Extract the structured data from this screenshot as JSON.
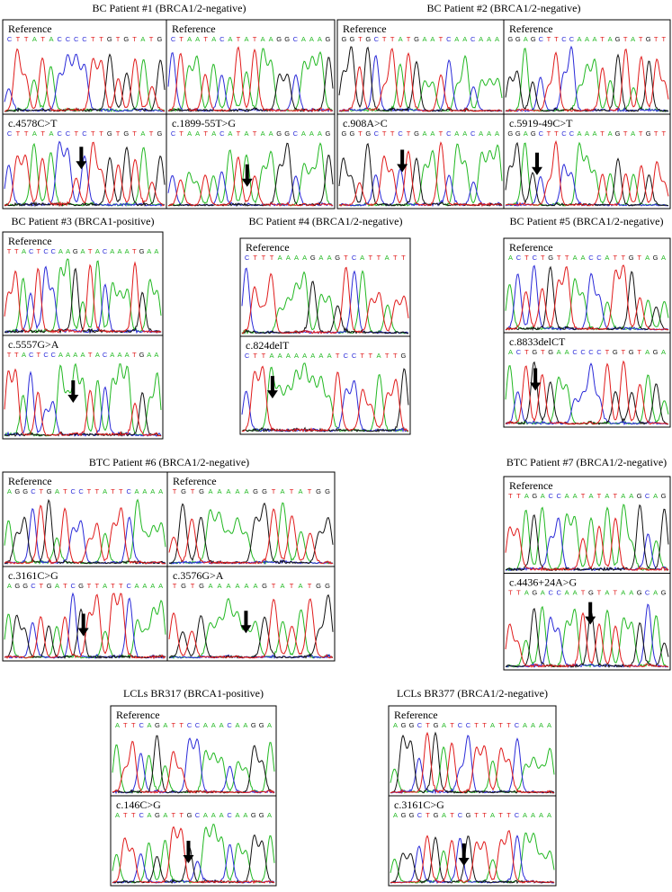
{
  "panels": [
    {
      "title": "BC Patient #1 (BRCA1/2-negative)",
      "columns": [
        {
          "reference_label": "Reference",
          "reference_sequence": "CTTATACCCCTTGTGTATG",
          "mutation": "c.4578C>T",
          "mutant_sequence": "CTTATACCTCTTGTGTATG"
        },
        {
          "reference_label": "Reference",
          "reference_sequence": "CTAATACATATAAGGCAAAG",
          "mutation": "c.1899-55T>G",
          "mutant_sequence": "CTAATACATATAAGGCAAAG"
        }
      ]
    },
    {
      "title": "BC Patient #2 (BRCA1/2-negative)",
      "columns": [
        {
          "reference_label": "Reference",
          "reference_sequence": "GGTGCTTATGAATCAACAAA",
          "mutation": "c.908A>C",
          "mutant_sequence": "GGTGCTTCTGAATCAACAAA"
        },
        {
          "reference_label": "Reference",
          "reference_sequence": "GGAGCTTCCAAATAGTATGTT",
          "mutation": "c.5919-49C>T",
          "mutant_sequence": "GGAGCTTCCAAATAGTATGTT"
        }
      ]
    },
    {
      "title": "BC Patient #3 (BRCA1-positive)",
      "columns": [
        {
          "reference_label": "Reference",
          "reference_sequence": "TTACTCCAAGATACAAATGAA",
          "mutation": "c.5557G>A",
          "mutant_sequence": "TTACTCCAAAATACAAATGAA"
        }
      ]
    },
    {
      "title": "BC Patient #4 (BRCA1/2-negative)",
      "columns": [
        {
          "reference_label": "Reference",
          "reference_sequence": "CTTTAAAAGAAGTCATTATT",
          "mutation": "c.824delT",
          "mutant_sequence": "CTTAAAAAAAATCCTTATTG"
        }
      ]
    },
    {
      "title": "BC Patient #5 (BRCA1/2-negative)",
      "columns": [
        {
          "reference_label": "Reference",
          "reference_sequence": "ACTCTGTTAACCATTGTAGA",
          "mutation": "c.8833delCT",
          "mutant_sequence": "ACTGTGAACCCCTGTGTAGA"
        }
      ]
    },
    {
      "title": "BTC Patient #6 (BRCA1/2-negative)",
      "columns": [
        {
          "reference_label": "Reference",
          "reference_sequence": "AGGCTGATCCTTATTCAAAA",
          "mutation": "c.3161C>G",
          "mutant_sequence": "AGGCTGATCGTTATTCAAAA"
        },
        {
          "reference_label": "Reference",
          "reference_sequence": "TGTGAAAAAGGTATATGG",
          "mutation": "c.3576G>A",
          "mutant_sequence": "TGTGAAAAAAGTATATGG"
        }
      ]
    },
    {
      "title": "BTC Patient #7 (BRCA1/2-negative)",
      "columns": [
        {
          "reference_label": "Reference",
          "reference_sequence": "TTAGACCAATATATAAGCAG",
          "mutation": "c.4436+24A>G",
          "mutant_sequence": "TTAGACCAATGTATAAGCAG"
        }
      ]
    },
    {
      "title": "LCLs BR317 (BRCA1-positive)",
      "columns": [
        {
          "reference_label": "Reference",
          "reference_sequence": "ATTCAGATTCCAAACAAGGA",
          "mutation": "c.146C>G",
          "mutant_sequence": "ATTCAGATTGCAAACAAGGA"
        }
      ]
    },
    {
      "title": "LCLs BR377 (BRCA1/2-negative)",
      "columns": [
        {
          "reference_label": "Reference",
          "reference_sequence": "AGGCTGATCCTTATTCAAAA",
          "mutation": "c.3161C>G",
          "mutant_sequence": "AGGCTGATCGTTATTCAAAA"
        }
      ]
    }
  ]
}
